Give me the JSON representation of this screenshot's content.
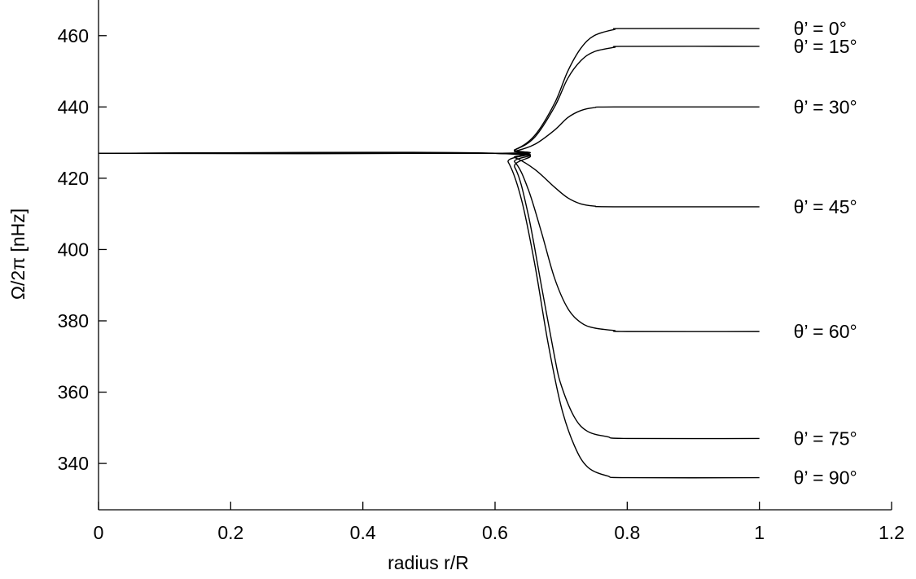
{
  "chart_data": {
    "type": "line",
    "title": "",
    "xlabel": "radius r/R",
    "ylabel": "Ω/2π [nHz]",
    "xlim": [
      0,
      1.2
    ],
    "ylim": [
      327,
      470
    ],
    "x_ticks": [
      0,
      0.2,
      0.4,
      0.6,
      0.8,
      1,
      1.2
    ],
    "x_tick_labels": [
      "0",
      "0.2",
      "0.4",
      "0.6",
      "0.8",
      "1",
      "1.2"
    ],
    "y_ticks": [
      340,
      360,
      380,
      400,
      420,
      440,
      460
    ],
    "y_tick_labels": [
      "340",
      "360",
      "380",
      "400",
      "420",
      "440",
      "460"
    ],
    "grid": false,
    "legend": "none",
    "line_color": "#000000",
    "series": [
      {
        "name": "θ’ = 0°",
        "label_y": 462,
        "values": [
          [
            0,
            427
          ],
          [
            0.6,
            427
          ],
          [
            0.63,
            428
          ],
          [
            0.66,
            432
          ],
          [
            0.69,
            441
          ],
          [
            0.71,
            450
          ],
          [
            0.73,
            456.5
          ],
          [
            0.75,
            460
          ],
          [
            0.78,
            461.7
          ],
          [
            0.8,
            462
          ],
          [
            1,
            462
          ]
        ]
      },
      {
        "name": "θ’ = 15°",
        "label_y": 457,
        "values": [
          [
            0,
            427
          ],
          [
            0.6,
            427
          ],
          [
            0.63,
            428
          ],
          [
            0.66,
            431.5
          ],
          [
            0.69,
            440
          ],
          [
            0.71,
            448
          ],
          [
            0.73,
            453
          ],
          [
            0.75,
            455.5
          ],
          [
            0.78,
            456.7
          ],
          [
            0.8,
            457
          ],
          [
            1,
            457
          ]
        ]
      },
      {
        "name": "θ’ = 30°",
        "label_y": 440,
        "values": [
          [
            0,
            427
          ],
          [
            0.6,
            427
          ],
          [
            0.63,
            427.6
          ],
          [
            0.66,
            429.5
          ],
          [
            0.69,
            433.5
          ],
          [
            0.71,
            437
          ],
          [
            0.73,
            439
          ],
          [
            0.75,
            439.8
          ],
          [
            0.78,
            440
          ],
          [
            1,
            440
          ]
        ]
      },
      {
        "name": "θ’ = 45°",
        "label_y": 412,
        "values": [
          [
            0,
            427
          ],
          [
            0.6,
            427
          ],
          [
            0.63,
            425.8
          ],
          [
            0.66,
            422.5
          ],
          [
            0.69,
            417.5
          ],
          [
            0.71,
            414.5
          ],
          [
            0.73,
            412.8
          ],
          [
            0.75,
            412.2
          ],
          [
            0.78,
            412
          ],
          [
            1,
            412
          ]
        ]
      },
      {
        "name": "θ’ = 60°",
        "label_y": 377,
        "values": [
          [
            0,
            427
          ],
          [
            0.6,
            427
          ],
          [
            0.63,
            424.5
          ],
          [
            0.65,
            417
          ],
          [
            0.67,
            405
          ],
          [
            0.69,
            392
          ],
          [
            0.71,
            383.5
          ],
          [
            0.73,
            379.5
          ],
          [
            0.75,
            378
          ],
          [
            0.78,
            377.3
          ],
          [
            0.8,
            377
          ],
          [
            1,
            377
          ]
        ]
      },
      {
        "name": "θ’ = 75°",
        "label_y": 347,
        "values": [
          [
            0,
            427
          ],
          [
            0.6,
            427
          ],
          [
            0.63,
            423
          ],
          [
            0.65,
            410
          ],
          [
            0.67,
            390
          ],
          [
            0.69,
            370
          ],
          [
            0.7,
            362
          ],
          [
            0.72,
            353
          ],
          [
            0.74,
            349
          ],
          [
            0.77,
            347.5
          ],
          [
            0.8,
            347
          ],
          [
            1,
            347
          ]
        ]
      },
      {
        "name": "θ’ = 90°",
        "label_y": 336,
        "values": [
          [
            0,
            427
          ],
          [
            0.6,
            427
          ],
          [
            0.62,
            424.5
          ],
          [
            0.64,
            414
          ],
          [
            0.66,
            396
          ],
          [
            0.68,
            374
          ],
          [
            0.7,
            356
          ],
          [
            0.72,
            345
          ],
          [
            0.74,
            339
          ],
          [
            0.77,
            336.5
          ],
          [
            0.8,
            336
          ],
          [
            1,
            336
          ]
        ]
      }
    ]
  }
}
